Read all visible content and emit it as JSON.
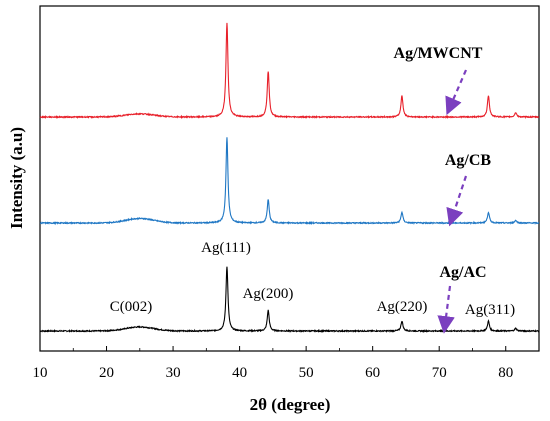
{
  "chart_data": {
    "type": "line",
    "xlabel": "2θ (degree)",
    "ylabel": "Intensity (a.u)",
    "xlim": [
      10,
      85
    ],
    "x_ticks": [
      10,
      20,
      30,
      40,
      50,
      60,
      70,
      80
    ],
    "y_ticks": "none",
    "grid": false,
    "legend": "none",
    "series": [
      {
        "name": "Ag/AC",
        "color": "#000000",
        "baseline": 0,
        "hump": {
          "center": 25,
          "width": 3.0,
          "height": 0.045
        },
        "peaks": [
          {
            "x": 38.1,
            "height": 0.72
          },
          {
            "x": 44.3,
            "height": 0.23
          },
          {
            "x": 64.4,
            "height": 0.11
          },
          {
            "x": 77.4,
            "height": 0.11
          },
          {
            "x": 81.5,
            "height": 0.03
          }
        ]
      },
      {
        "name": "Ag/CB",
        "color": "#1f77c4",
        "baseline": 1,
        "hump": {
          "center": 25,
          "width": 3.0,
          "height": 0.05
        },
        "peaks": [
          {
            "x": 38.1,
            "height": 0.95
          },
          {
            "x": 44.3,
            "height": 0.26
          },
          {
            "x": 64.4,
            "height": 0.12
          },
          {
            "x": 77.4,
            "height": 0.12
          },
          {
            "x": 81.5,
            "height": 0.03
          }
        ]
      },
      {
        "name": "Ag/MWCNT",
        "color": "#e8202a",
        "baseline": 2,
        "hump": {
          "center": 25,
          "width": 3.0,
          "height": 0.035
        },
        "peaks": [
          {
            "x": 38.1,
            "height": 1.05
          },
          {
            "x": 44.3,
            "height": 0.51
          },
          {
            "x": 64.4,
            "height": 0.24
          },
          {
            "x": 77.4,
            "height": 0.24
          },
          {
            "x": 81.5,
            "height": 0.05
          }
        ]
      }
    ],
    "annotations": [
      {
        "text": "C(002)",
        "x": 25.0
      },
      {
        "text": "Ag(111)",
        "x": 38.1
      },
      {
        "text": "Ag(200)",
        "x": 44.3
      },
      {
        "text": "Ag(220)",
        "x": 64.4
      },
      {
        "text": "Ag(311)",
        "x": 77.4
      }
    ],
    "sample_labels": [
      "Ag/MWCNT",
      "Ag/CB",
      "Ag/AC"
    ],
    "arrow_color": "#7b3fbf"
  }
}
